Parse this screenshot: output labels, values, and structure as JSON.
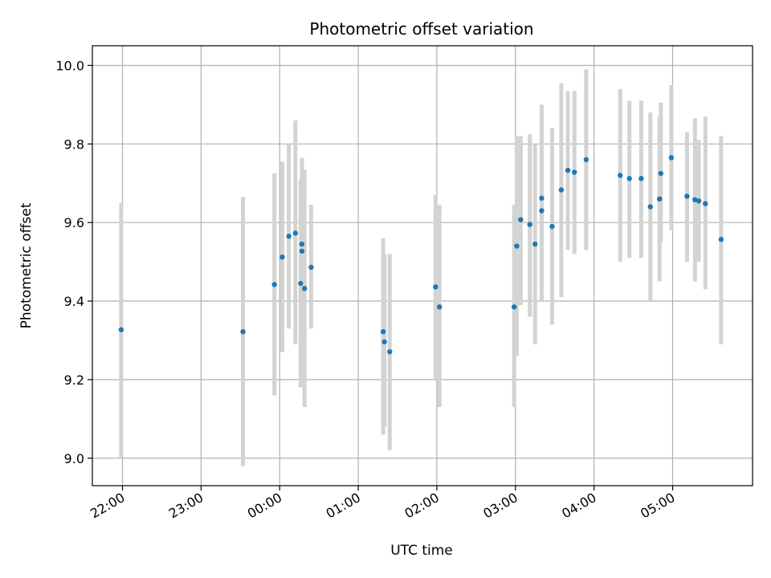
{
  "chart_data": {
    "type": "scatter",
    "title": "Photometric offset variation",
    "xlabel": "UTC time",
    "ylabel": "Photometric offset",
    "x_axis_kind": "time",
    "x_ticks": [
      "22:00",
      "23:00",
      "00:00",
      "01:00",
      "02:00",
      "03:00",
      "04:00",
      "05:00"
    ],
    "y_ticks": [
      "9.0",
      "9.2",
      "9.4",
      "9.6",
      "9.8",
      "10.0"
    ],
    "ylim": [
      8.93,
      10.05
    ],
    "xlim": [
      "21:37",
      "06:01"
    ],
    "grid": true,
    "series": [
      {
        "color": "#1f77b4",
        "errorbar_color": "#d3d3d3",
        "points": [
          {
            "x": "21:59",
            "y": 9.327,
            "lo": 9.0,
            "hi": 9.65
          },
          {
            "x": "23:32",
            "y": 9.322,
            "lo": 8.98,
            "hi": 9.665
          },
          {
            "x": "23:56",
            "y": 9.442,
            "lo": 9.16,
            "hi": 9.725
          },
          {
            "x": "00:02",
            "y": 9.512,
            "lo": 9.27,
            "hi": 9.755
          },
          {
            "x": "00:07",
            "y": 9.565,
            "lo": 9.33,
            "hi": 9.8
          },
          {
            "x": "00:12",
            "y": 9.573,
            "lo": 9.29,
            "hi": 9.86
          },
          {
            "x": "00:16",
            "y": 9.445,
            "lo": 9.18,
            "hi": 9.71
          },
          {
            "x": "00:17",
            "y": 9.545,
            "lo": 9.34,
            "hi": 9.765
          },
          {
            "x": "00:17",
            "y": 9.527,
            "lo": 9.3,
            "hi": 9.75
          },
          {
            "x": "00:19",
            "y": 9.432,
            "lo": 9.13,
            "hi": 9.735
          },
          {
            "x": "00:24",
            "y": 9.486,
            "lo": 9.33,
            "hi": 9.645
          },
          {
            "x": "01:19",
            "y": 9.322,
            "lo": 9.06,
            "hi": 9.56
          },
          {
            "x": "01:20",
            "y": 9.296,
            "lo": 9.08,
            "hi": 9.52
          },
          {
            "x": "01:24",
            "y": 9.271,
            "lo": 9.02,
            "hi": 9.52
          },
          {
            "x": "01:59",
            "y": 9.436,
            "lo": 9.2,
            "hi": 9.67
          },
          {
            "x": "02:02",
            "y": 9.385,
            "lo": 9.13,
            "hi": 9.645
          },
          {
            "x": "02:59",
            "y": 9.385,
            "lo": 9.13,
            "hi": 9.645
          },
          {
            "x": "03:01",
            "y": 9.54,
            "lo": 9.26,
            "hi": 9.82
          },
          {
            "x": "03:04",
            "y": 9.607,
            "lo": 9.39,
            "hi": 9.82
          },
          {
            "x": "03:11",
            "y": 9.595,
            "lo": 9.36,
            "hi": 9.825
          },
          {
            "x": "03:15",
            "y": 9.545,
            "lo": 9.29,
            "hi": 9.8
          },
          {
            "x": "03:20",
            "y": 9.662,
            "lo": 9.43,
            "hi": 9.9
          },
          {
            "x": "03:20",
            "y": 9.63,
            "lo": 9.4,
            "hi": 9.86
          },
          {
            "x": "03:28",
            "y": 9.59,
            "lo": 9.34,
            "hi": 9.84
          },
          {
            "x": "03:35",
            "y": 9.683,
            "lo": 9.41,
            "hi": 9.955
          },
          {
            "x": "03:40",
            "y": 9.733,
            "lo": 9.53,
            "hi": 9.935
          },
          {
            "x": "03:45",
            "y": 9.728,
            "lo": 9.52,
            "hi": 9.935
          },
          {
            "x": "03:54",
            "y": 9.76,
            "lo": 9.53,
            "hi": 9.99
          },
          {
            "x": "04:20",
            "y": 9.72,
            "lo": 9.5,
            "hi": 9.94
          },
          {
            "x": "04:27",
            "y": 9.712,
            "lo": 9.51,
            "hi": 9.91
          },
          {
            "x": "04:36",
            "y": 9.712,
            "lo": 9.51,
            "hi": 9.91
          },
          {
            "x": "04:43",
            "y": 9.64,
            "lo": 9.4,
            "hi": 9.88
          },
          {
            "x": "04:51",
            "y": 9.725,
            "lo": 9.55,
            "hi": 9.905
          },
          {
            "x": "04:50",
            "y": 9.66,
            "lo": 9.45,
            "hi": 9.87
          },
          {
            "x": "04:59",
            "y": 9.765,
            "lo": 9.58,
            "hi": 9.95
          },
          {
            "x": "05:11",
            "y": 9.667,
            "lo": 9.5,
            "hi": 9.83
          },
          {
            "x": "05:17",
            "y": 9.658,
            "lo": 9.45,
            "hi": 9.865
          },
          {
            "x": "05:20",
            "y": 9.655,
            "lo": 9.5,
            "hi": 9.81
          },
          {
            "x": "05:25",
            "y": 9.648,
            "lo": 9.43,
            "hi": 9.87
          },
          {
            "x": "05:37",
            "y": 9.557,
            "lo": 9.29,
            "hi": 9.82
          }
        ]
      }
    ]
  }
}
